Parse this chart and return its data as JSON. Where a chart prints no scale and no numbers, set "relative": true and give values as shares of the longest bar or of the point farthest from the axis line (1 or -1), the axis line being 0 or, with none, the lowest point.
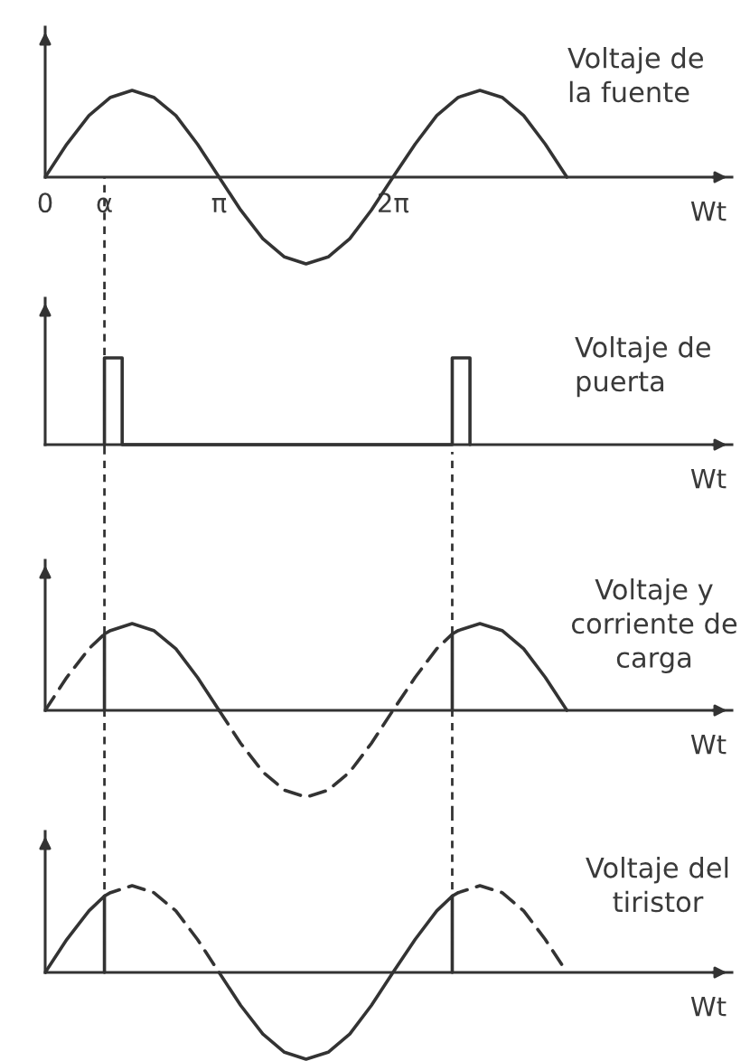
{
  "chart_data": [
    {
      "type": "line",
      "title": "Voltaje de\nla fuente",
      "xlabel": "Wt",
      "relative": true,
      "xlim": [
        0,
        12.4
      ],
      "xticks": [
        0,
        {
          "value": 1.07,
          "label": "α"
        },
        {
          "value": 3.14,
          "label": "π"
        },
        {
          "value": 6.28,
          "label": "2π"
        }
      ],
      "tick_labels": "x",
      "ref_lines": [
        {
          "axis": "x",
          "value": 1.07,
          "line_style": "dashed",
          "color": "#333333"
        }
      ],
      "series": [
        {
          "color": "#333333",
          "line_style": "solid",
          "x": [
            0,
            0.39,
            0.79,
            1.18,
            1.57,
            1.96,
            2.36,
            2.75,
            3.14,
            3.53,
            3.93,
            4.32,
            4.71,
            5.11,
            5.5,
            5.89,
            6.28,
            6.68,
            7.07,
            7.46,
            7.85,
            8.25,
            8.64,
            9.03,
            9.42
          ],
          "values": [
            0,
            0.38,
            0.71,
            0.92,
            1,
            0.92,
            0.71,
            0.38,
            0,
            -0.38,
            -0.71,
            -0.92,
            -1,
            -0.92,
            -0.71,
            -0.38,
            0,
            0.38,
            0.71,
            0.92,
            1,
            0.92,
            0.71,
            0.38,
            0
          ]
        }
      ]
    },
    {
      "type": "line",
      "title": "Voltaje de\npuerta",
      "xlabel": "Wt",
      "relative": true,
      "xlim": [
        0,
        12.4
      ],
      "tick_labels": false,
      "ref_lines": [
        {
          "axis": "x",
          "value": 1.07,
          "line_style": "dashed",
          "color": "#333333"
        }
      ],
      "series": [
        {
          "color": "#333333",
          "line_style": "solid",
          "x": [
            1.07,
            1.07,
            1.39,
            1.39,
            7.35,
            7.35,
            7.67,
            7.67
          ],
          "values": [
            0,
            1,
            1,
            0,
            0,
            1,
            1,
            0
          ]
        }
      ]
    },
    {
      "type": "line",
      "title": "Voltaje y\ncorriente de\ncarga",
      "xlabel": "Wt",
      "relative": true,
      "xlim": [
        0,
        12.4
      ],
      "tick_labels": false,
      "ref_lines": [
        {
          "axis": "x",
          "value": 1.07,
          "line_style": "dashed",
          "color": "#333333"
        },
        {
          "axis": "x",
          "value": 7.35,
          "line_style": "dashed",
          "color": "#333333"
        }
      ],
      "series": [
        {
          "color": "#333333",
          "line_style": "dashed",
          "x": [
            0,
            0.39,
            0.79,
            1.07
          ],
          "values": [
            0,
            0.38,
            0.71,
            0.88
          ]
        },
        {
          "color": "#333333",
          "line_style": "solid",
          "x": [
            1.07,
            1.07,
            1.18,
            1.57,
            1.96,
            2.36,
            2.75,
            3.14
          ],
          "values": [
            0,
            0.88,
            0.92,
            1,
            0.92,
            0.71,
            0.38,
            0
          ]
        },
        {
          "color": "#333333",
          "line_style": "dashed",
          "x": [
            3.14,
            3.53,
            3.93,
            4.32,
            4.71,
            5.11,
            5.5,
            5.89,
            6.28,
            6.68,
            7.07,
            7.35
          ],
          "values": [
            0,
            -0.38,
            -0.71,
            -0.92,
            -1,
            -0.92,
            -0.71,
            -0.38,
            0,
            0.38,
            0.71,
            0.88
          ]
        },
        {
          "color": "#333333",
          "line_style": "solid",
          "x": [
            7.35,
            7.35,
            7.46,
            7.85,
            8.25,
            8.64,
            9.03,
            9.42
          ],
          "values": [
            0,
            0.88,
            0.92,
            1,
            0.92,
            0.71,
            0.38,
            0
          ]
        }
      ]
    },
    {
      "type": "line",
      "title": "Voltaje del\ntiristor",
      "xlabel": "Wt",
      "relative": true,
      "xlim": [
        0,
        12.4
      ],
      "tick_labels": false,
      "ref_lines": [
        {
          "axis": "x",
          "value": 1.07,
          "line_style": "dashed",
          "color": "#333333"
        },
        {
          "axis": "x",
          "value": 7.35,
          "line_style": "dashed",
          "color": "#333333"
        }
      ],
      "series": [
        {
          "color": "#333333",
          "line_style": "solid",
          "x": [
            0,
            0.39,
            0.79,
            1.07,
            1.07
          ],
          "values": [
            0,
            0.38,
            0.71,
            0.88,
            0
          ]
        },
        {
          "color": "#333333",
          "line_style": "dashed",
          "x": [
            1.07,
            1.18,
            1.57,
            1.96,
            2.36,
            2.75,
            3.14
          ],
          "values": [
            0.88,
            0.92,
            1,
            0.92,
            0.71,
            0.38,
            0
          ]
        },
        {
          "color": "#333333",
          "line_style": "solid",
          "x": [
            3.14,
            3.53,
            3.93,
            4.32,
            4.71,
            5.11,
            5.5,
            5.89,
            6.28,
            6.68,
            7.07,
            7.35,
            7.35
          ],
          "values": [
            0,
            -0.38,
            -0.71,
            -0.92,
            -1,
            -0.92,
            -0.71,
            -0.38,
            0,
            0.38,
            0.71,
            0.88,
            0
          ]
        },
        {
          "color": "#333333",
          "line_style": "dashed",
          "x": [
            7.35,
            7.46,
            7.85,
            8.25,
            8.64,
            9.03,
            9.42
          ],
          "values": [
            0.88,
            0.92,
            1,
            0.92,
            0.71,
            0.38,
            0
          ]
        }
      ]
    }
  ]
}
